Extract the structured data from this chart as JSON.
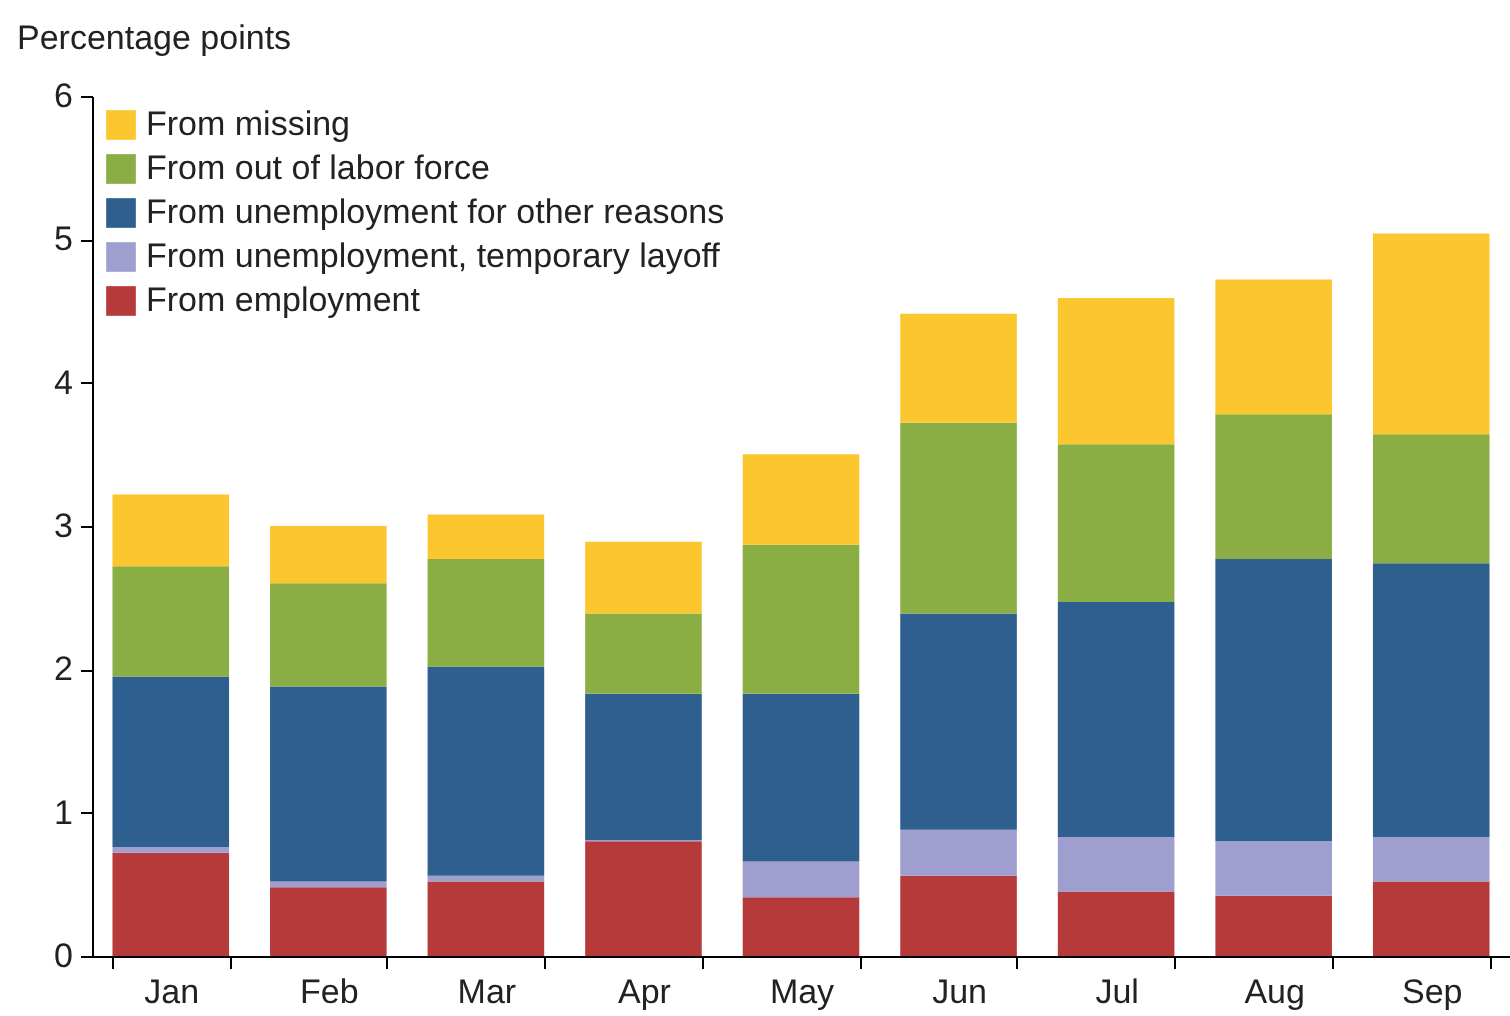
{
  "chart_data": {
    "type": "bar",
    "stacked": true,
    "ylabel": "Percentage points",
    "categories": [
      "Jan",
      "Feb",
      "Mar",
      "Apr",
      "May",
      "Jun",
      "Jul",
      "Aug",
      "Sep"
    ],
    "series": [
      {
        "name": "From employment",
        "color": "#b73a3a",
        "values": [
          0.72,
          0.48,
          0.52,
          0.8,
          0.41,
          0.56,
          0.45,
          0.42,
          0.52
        ]
      },
      {
        "name": "From unemployment, temporary layoff",
        "color": "#9f9fcf",
        "values": [
          0.04,
          0.04,
          0.04,
          0.01,
          0.25,
          0.32,
          0.38,
          0.38,
          0.31
        ]
      },
      {
        "name": "From unemployment for other reasons",
        "color": "#2e5f8e",
        "values": [
          1.19,
          1.36,
          1.46,
          1.02,
          1.17,
          1.51,
          1.64,
          1.97,
          1.91
        ]
      },
      {
        "name": "From out of labor force",
        "color": "#8aae44",
        "values": [
          0.77,
          0.72,
          0.75,
          0.56,
          1.04,
          1.33,
          1.1,
          1.01,
          0.9
        ]
      },
      {
        "name": "From missing",
        "color": "#fcc62f",
        "values": [
          0.5,
          0.4,
          0.31,
          0.5,
          0.63,
          0.76,
          1.02,
          0.94,
          1.4
        ]
      }
    ],
    "ylim": [
      0,
      6
    ],
    "yticks": [
      0,
      1,
      2,
      3,
      4,
      5,
      6
    ],
    "legend": "top left"
  }
}
